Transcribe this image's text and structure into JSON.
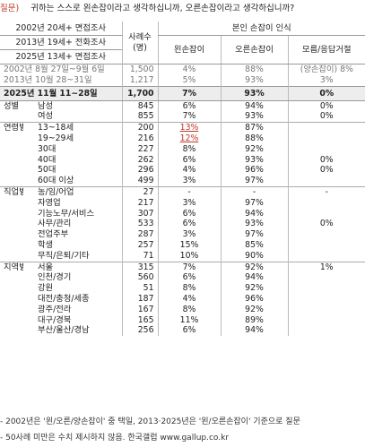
{
  "question": {
    "label": "질문)",
    "text": "귀하는 스스로 왼손잡이라고 생각하십니까, 오른손잡이라고 생각하십니까?"
  },
  "header": {
    "survey_rows": [
      "2002년 20세+ 면접조사",
      "2013년 19세+ 전화조사",
      "2025년 13세+ 면접조사"
    ],
    "sample_label": "사례수(명)",
    "group_label": "본인 손잡이 인식",
    "columns": [
      "왼손잡이",
      "오른손잡이",
      "모름/응답거절"
    ]
  },
  "history": [
    {
      "label": "2002년 8월 27일~9월 6일",
      "n": "1,500",
      "left": "4%",
      "right": "88%",
      "dk": "(양손잡이) 8%"
    },
    {
      "label": "2013년 10월 28~31일",
      "n": "1,217",
      "left": "5%",
      "right": "93%",
      "dk": "3%"
    }
  ],
  "current": {
    "label": "2025년 11월 11~28일",
    "n": "1,700",
    "left": "7%",
    "right": "93%",
    "dk": "0%"
  },
  "groups": [
    {
      "name": "성별",
      "rows": [
        {
          "label": "남성",
          "n": "845",
          "left": "6%",
          "right": "94%",
          "dk": "0%"
        },
        {
          "label": "여성",
          "n": "855",
          "left": "7%",
          "right": "93%",
          "dk": "0%"
        }
      ]
    },
    {
      "name": "연령별",
      "rows": [
        {
          "label": "13~18세",
          "n": "200",
          "left": "13%",
          "right": "87%",
          "dk": ""
        },
        {
          "label": "19~29세",
          "n": "216",
          "left": "12%",
          "right": "88%",
          "dk": ""
        },
        {
          "label": "30대",
          "n": "227",
          "left": "8%",
          "right": "92%",
          "dk": ""
        },
        {
          "label": "40대",
          "n": "262",
          "left": "6%",
          "right": "93%",
          "dk": "0%"
        },
        {
          "label": "50대",
          "n": "296",
          "left": "4%",
          "right": "96%",
          "dk": "0%"
        },
        {
          "label": "60대 이상",
          "n": "499",
          "left": "3%",
          "right": "97%",
          "dk": ""
        }
      ]
    },
    {
      "name": "직업별",
      "rows": [
        {
          "label": "농/임/어업",
          "n": "27",
          "left": "-",
          "right": "-",
          "dk": "-"
        },
        {
          "label": "자영업",
          "n": "217",
          "left": "3%",
          "right": "97%",
          "dk": ""
        },
        {
          "label": "기능노무/서비스",
          "n": "307",
          "left": "6%",
          "right": "94%",
          "dk": ""
        },
        {
          "label": "사무/관리",
          "n": "533",
          "left": "6%",
          "right": "93%",
          "dk": "0%"
        },
        {
          "label": "전업주부",
          "n": "287",
          "left": "3%",
          "right": "97%",
          "dk": ""
        },
        {
          "label": "학생",
          "n": "257",
          "left": "15%",
          "right": "85%",
          "dk": ""
        },
        {
          "label": "무직/은퇴/기타",
          "n": "71",
          "left": "10%",
          "right": "90%",
          "dk": ""
        }
      ]
    },
    {
      "name": "지역별",
      "rows": [
        {
          "label": "서울",
          "n": "315",
          "left": "7%",
          "right": "92%",
          "dk": "1%"
        },
        {
          "label": "인천/경기",
          "n": "560",
          "left": "6%",
          "right": "94%",
          "dk": ""
        },
        {
          "label": "강원",
          "n": "51",
          "left": "8%",
          "right": "92%",
          "dk": ""
        },
        {
          "label": "대전/충청/세종",
          "n": "187",
          "left": "4%",
          "right": "96%",
          "dk": ""
        },
        {
          "label": "광주/전라",
          "n": "167",
          "left": "8%",
          "right": "92%",
          "dk": ""
        },
        {
          "label": "대구/경북",
          "n": "165",
          "left": "11%",
          "right": "89%",
          "dk": ""
        },
        {
          "label": "부산/울산/경남",
          "n": "256",
          "left": "6%",
          "right": "94%",
          "dk": ""
        }
      ]
    }
  ],
  "footnotes": [
    "- 2002년은 '왼/오른/양손잡이' 중 택일, 2013·2025년은 '왼/오른손잡이' 기준으로 질문",
    "- 50사례 미만은 수치 제시하지 않음. 한국갤럽 www.gallup.co.kr"
  ],
  "colors": {
    "highlight_bg": "#ededed",
    "emphasis": "#c0392b",
    "history_text": "#777777"
  }
}
